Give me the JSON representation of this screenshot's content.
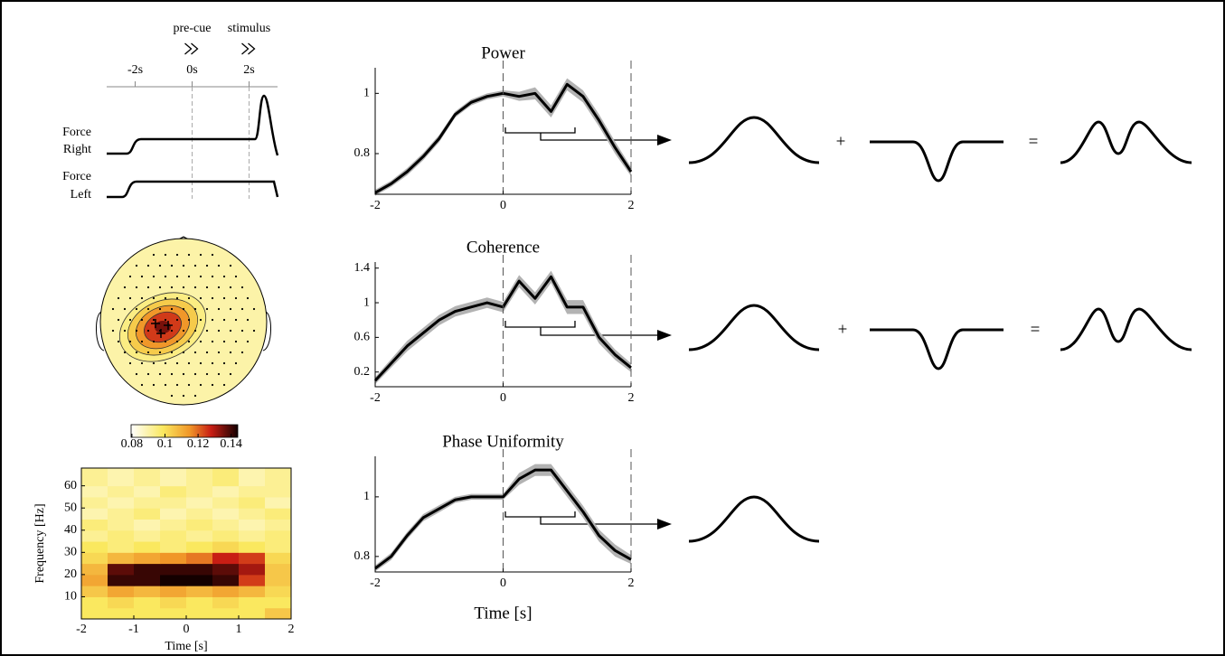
{
  "timeline": {
    "cues": [
      "pre-cue",
      "stimulus"
    ],
    "cue_at": [
      0,
      2
    ],
    "xlim": [
      -3,
      3
    ],
    "ticks": [
      {
        "value": -2,
        "label": "-2s"
      },
      {
        "value": 0,
        "label": "0s"
      },
      {
        "value": 2,
        "label": "2s"
      }
    ],
    "traces": [
      [
        "Force",
        "Right"
      ],
      [
        "Force",
        "Left"
      ]
    ]
  },
  "topomap": {
    "clim": [
      0.0795,
      0.144
    ],
    "ticks": [
      0.08,
      0.1,
      0.12,
      0.14
    ],
    "background": 0.09,
    "peak": 0.135
  },
  "schematic": [
    {
      "plus": "+",
      "equals": "="
    },
    {
      "plus": "+",
      "equals": "="
    }
  ],
  "chart_data": [
    {
      "type": "heatmap",
      "xlabel": "Time [s]",
      "ylabel": "Frequency [Hz]",
      "xlim": [
        -2,
        2
      ],
      "ylim": [
        0,
        68
      ],
      "xticks": [
        -2,
        -1,
        0,
        1,
        2
      ],
      "yticks": [
        10,
        20,
        30,
        40,
        50,
        60
      ],
      "xbins": [
        -2,
        -1.5,
        -1,
        -0.5,
        0,
        0.5,
        1,
        1.5,
        2
      ],
      "ybins": [
        0,
        5,
        10,
        15,
        20,
        25,
        30,
        35,
        40,
        45,
        50,
        55,
        60,
        68
      ],
      "z": [
        [
          0.3,
          0.3,
          0.3,
          0.3,
          0.3,
          0.3,
          0.3,
          0.4
        ],
        [
          0.3,
          0.35,
          0.3,
          0.35,
          0.3,
          0.35,
          0.3,
          0.3
        ],
        [
          0.4,
          0.5,
          0.45,
          0.5,
          0.45,
          0.5,
          0.45,
          0.35
        ],
        [
          0.5,
          0.95,
          0.95,
          1,
          1,
          0.95,
          0.7,
          0.4
        ],
        [
          0.45,
          0.9,
          0.95,
          0.95,
          0.95,
          0.9,
          0.8,
          0.4
        ],
        [
          0.35,
          0.45,
          0.5,
          0.55,
          0.6,
          0.75,
          0.7,
          0.35
        ],
        [
          0.3,
          0.25,
          0.3,
          0.25,
          0.3,
          0.35,
          0.3,
          0.25
        ],
        [
          0.2,
          0.25,
          0.2,
          0.25,
          0.2,
          0.25,
          0.2,
          0.25
        ],
        [
          0.25,
          0.2,
          0.15,
          0.2,
          0.25,
          0.2,
          0.15,
          0.2
        ],
        [
          0.15,
          0.2,
          0.25,
          0.15,
          0.2,
          0.15,
          0.2,
          0.25
        ],
        [
          0.2,
          0.15,
          0.2,
          0.2,
          0.15,
          0.2,
          0.25,
          0.15
        ],
        [
          0.15,
          0.2,
          0.15,
          0.25,
          0.2,
          0.15,
          0.2,
          0.2
        ],
        [
          0.2,
          0.15,
          0.2,
          0.15,
          0.2,
          0.25,
          0.15,
          0.2
        ]
      ]
    },
    {
      "type": "line",
      "title": "Power",
      "x": [
        -2,
        -1.75,
        -1.5,
        -1.25,
        -1,
        -0.75,
        -0.5,
        -0.25,
        0,
        0.25,
        0.5,
        0.75,
        1,
        1.25,
        1.5,
        1.75,
        2
      ],
      "values": [
        0.67,
        0.7,
        0.74,
        0.79,
        0.85,
        0.93,
        0.97,
        0.99,
        1.0,
        0.99,
        1.0,
        0.94,
        1.03,
        0.99,
        0.91,
        0.82,
        0.74
      ],
      "spread": [
        0.01,
        0.01,
        0.012,
        0.012,
        0.012,
        0.01,
        0.01,
        0.01,
        0.01,
        0.015,
        0.02,
        0.02,
        0.02,
        0.02,
        0.02,
        0.02,
        0.015
      ],
      "xlim": [
        -2,
        2
      ],
      "ylim": [
        0.665,
        1.085
      ],
      "xticks": [
        -2,
        0,
        2
      ],
      "yticks": [
        0.8,
        1
      ],
      "vlines": [
        0,
        2
      ],
      "color": "#000000",
      "band_color": "#b3b3b3"
    },
    {
      "type": "line",
      "title": "Coherence",
      "x": [
        -2,
        -1.75,
        -1.5,
        -1.25,
        -1,
        -0.75,
        -0.5,
        -0.25,
        0,
        0.25,
        0.5,
        0.75,
        1,
        1.25,
        1.5,
        1.75,
        2
      ],
      "values": [
        0.1,
        0.3,
        0.5,
        0.65,
        0.8,
        0.9,
        0.95,
        1.0,
        0.95,
        1.25,
        1.05,
        1.3,
        0.95,
        0.95,
        0.6,
        0.4,
        0.25
      ],
      "spread": [
        0.04,
        0.05,
        0.06,
        0.06,
        0.06,
        0.06,
        0.06,
        0.06,
        0.06,
        0.07,
        0.07,
        0.07,
        0.08,
        0.08,
        0.07,
        0.06,
        0.05
      ],
      "xlim": [
        -2,
        2
      ],
      "ylim": [
        0.03,
        1.47
      ],
      "xticks": [
        -2,
        0,
        2
      ],
      "yticks": [
        0.2,
        0.6,
        1,
        1.4
      ],
      "vlines": [
        0,
        2
      ],
      "color": "#000000",
      "band_color": "#b3b3b3"
    },
    {
      "type": "line",
      "title": "Phase Uniformity",
      "xlabel": "Time [s]",
      "x": [
        -2,
        -1.75,
        -1.5,
        -1.25,
        -1,
        -0.75,
        -0.5,
        -0.25,
        0,
        0.25,
        0.5,
        0.75,
        1,
        1.25,
        1.5,
        1.75,
        2
      ],
      "values": [
        0.76,
        0.8,
        0.87,
        0.93,
        0.96,
        0.99,
        1.0,
        1.0,
        1.0,
        1.06,
        1.09,
        1.09,
        1.02,
        0.95,
        0.87,
        0.82,
        0.79
      ],
      "spread": [
        0.01,
        0.012,
        0.012,
        0.012,
        0.012,
        0.01,
        0.01,
        0.01,
        0.01,
        0.02,
        0.02,
        0.02,
        0.02,
        0.02,
        0.02,
        0.02,
        0.015
      ],
      "xlim": [
        -2,
        2
      ],
      "ylim": [
        0.748,
        1.136
      ],
      "xticks": [
        -2,
        0,
        2
      ],
      "yticks": [
        0.8,
        1
      ],
      "vlines": [
        0,
        2
      ],
      "color": "#000000",
      "band_color": "#b3b3b3"
    }
  ]
}
